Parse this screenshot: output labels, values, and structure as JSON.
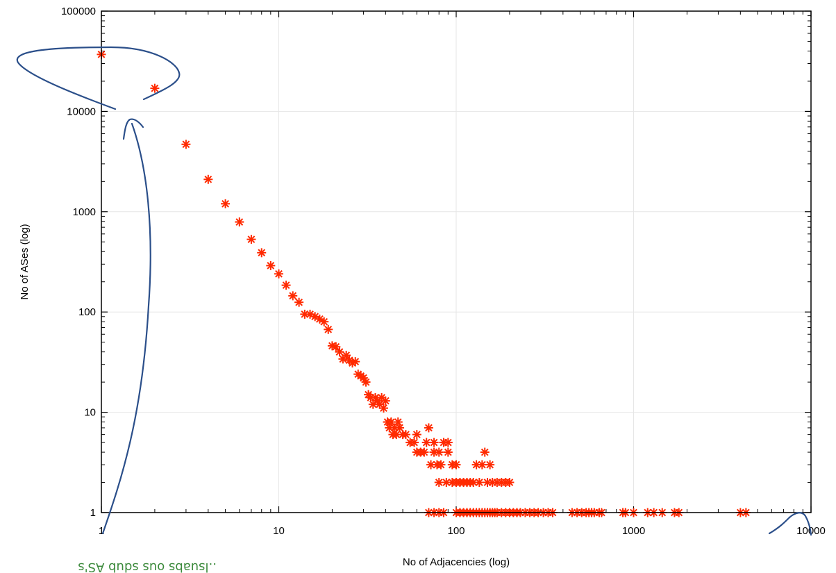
{
  "chart_data": {
    "type": "scatter",
    "title": "",
    "xlabel": "No of Adjacencies (log)",
    "ylabel": "No of ASes (log)",
    "x_scale": "log",
    "y_scale": "log",
    "xlim": [
      1,
      10000
    ],
    "ylim": [
      1,
      100000
    ],
    "grid": true,
    "x_ticks": [
      "1",
      "10",
      "100",
      "1000",
      "10000"
    ],
    "y_ticks": [
      "1",
      "10",
      "100",
      "1000",
      "10000",
      "100000"
    ],
    "marker_color": "#ff2a00",
    "points": [
      [
        1,
        37000
      ],
      [
        2,
        17000
      ],
      [
        3,
        4700
      ],
      [
        4,
        2100
      ],
      [
        5,
        1200
      ],
      [
        6,
        790
      ],
      [
        7,
        530
      ],
      [
        8,
        390
      ],
      [
        9,
        290
      ],
      [
        10,
        240
      ],
      [
        11,
        185
      ],
      [
        12,
        145
      ],
      [
        13,
        125
      ],
      [
        14,
        95
      ],
      [
        15,
        95
      ],
      [
        16,
        90
      ],
      [
        17,
        85
      ],
      [
        18,
        80
      ],
      [
        19,
        67
      ],
      [
        20,
        46
      ],
      [
        21,
        45
      ],
      [
        22,
        40
      ],
      [
        23,
        34
      ],
      [
        24,
        37
      ],
      [
        25,
        33
      ],
      [
        26,
        31
      ],
      [
        27,
        32
      ],
      [
        28,
        24
      ],
      [
        29,
        23
      ],
      [
        30,
        22
      ],
      [
        31,
        20
      ],
      [
        32,
        15
      ],
      [
        33,
        14
      ],
      [
        34,
        12
      ],
      [
        35,
        14
      ],
      [
        36,
        13
      ],
      [
        37,
        12
      ],
      [
        38,
        14
      ],
      [
        39,
        11
      ],
      [
        40,
        13
      ],
      [
        41,
        8
      ],
      [
        42,
        7
      ],
      [
        43,
        8
      ],
      [
        44,
        6
      ],
      [
        45,
        7
      ],
      [
        46,
        6
      ],
      [
        47,
        8
      ],
      [
        48,
        7
      ],
      [
        50,
        6
      ],
      [
        52,
        6
      ],
      [
        55,
        5
      ],
      [
        58,
        5
      ],
      [
        60,
        4
      ],
      [
        60,
        6
      ],
      [
        63,
        4
      ],
      [
        66,
        4
      ],
      [
        68,
        5
      ],
      [
        70,
        7
      ],
      [
        72,
        3
      ],
      [
        75,
        4
      ],
      [
        75,
        5
      ],
      [
        78,
        3
      ],
      [
        80,
        4
      ],
      [
        80,
        2
      ],
      [
        82,
        3
      ],
      [
        85,
        5
      ],
      [
        88,
        2
      ],
      [
        90,
        4
      ],
      [
        90,
        5
      ],
      [
        95,
        3
      ],
      [
        95,
        2
      ],
      [
        100,
        3
      ],
      [
        100,
        2
      ],
      [
        105,
        2
      ],
      [
        110,
        2
      ],
      [
        115,
        2
      ],
      [
        120,
        2
      ],
      [
        125,
        2
      ],
      [
        130,
        3
      ],
      [
        135,
        2
      ],
      [
        140,
        3
      ],
      [
        145,
        4
      ],
      [
        150,
        2
      ],
      [
        155,
        3
      ],
      [
        160,
        2
      ],
      [
        170,
        2
      ],
      [
        180,
        2
      ],
      [
        190,
        2
      ],
      [
        200,
        2
      ],
      [
        70,
        1
      ],
      [
        75,
        1
      ],
      [
        80,
        1
      ],
      [
        85,
        1
      ],
      [
        100,
        1
      ],
      [
        105,
        1
      ],
      [
        110,
        1
      ],
      [
        115,
        1
      ],
      [
        120,
        1
      ],
      [
        125,
        1
      ],
      [
        130,
        1
      ],
      [
        135,
        1
      ],
      [
        140,
        1
      ],
      [
        145,
        1
      ],
      [
        150,
        1
      ],
      [
        155,
        1
      ],
      [
        160,
        1
      ],
      [
        165,
        1
      ],
      [
        170,
        1
      ],
      [
        180,
        1
      ],
      [
        190,
        1
      ],
      [
        200,
        1
      ],
      [
        210,
        1
      ],
      [
        220,
        1
      ],
      [
        230,
        1
      ],
      [
        245,
        1
      ],
      [
        260,
        1
      ],
      [
        275,
        1
      ],
      [
        290,
        1
      ],
      [
        310,
        1
      ],
      [
        330,
        1
      ],
      [
        350,
        1
      ],
      [
        450,
        1
      ],
      [
        480,
        1
      ],
      [
        510,
        1
      ],
      [
        540,
        1
      ],
      [
        560,
        1
      ],
      [
        580,
        1
      ],
      [
        600,
        1
      ],
      [
        640,
        1
      ],
      [
        660,
        1
      ],
      [
        870,
        1
      ],
      [
        900,
        1
      ],
      [
        1000,
        1
      ],
      [
        1200,
        1
      ],
      [
        1300,
        1
      ],
      [
        1450,
        1
      ],
      [
        1700,
        1
      ],
      [
        1800,
        1
      ],
      [
        4000,
        1
      ],
      [
        4300,
        1
      ]
    ]
  },
  "annotation": {
    "note_text": "..lsuabs ous sdub AS's"
  }
}
